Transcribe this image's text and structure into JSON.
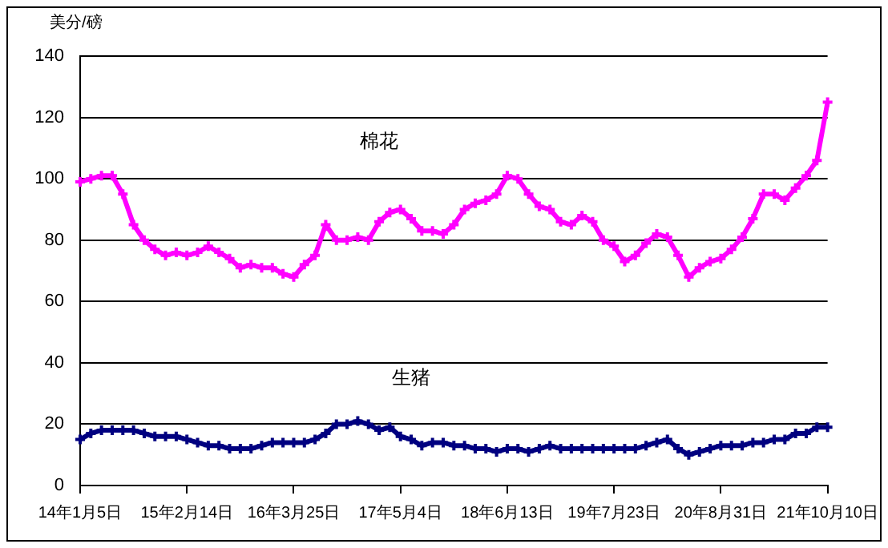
{
  "chart_data": {
    "type": "line",
    "ylabel": "美分/磅",
    "categories": [
      "14年1月5日",
      null,
      null,
      null,
      null,
      null,
      null,
      null,
      null,
      null,
      "15年2月14日",
      null,
      null,
      null,
      null,
      null,
      null,
      null,
      null,
      null,
      "16年3月25日",
      null,
      null,
      null,
      null,
      null,
      null,
      null,
      null,
      null,
      "17年5月4日",
      null,
      null,
      null,
      null,
      null,
      null,
      null,
      null,
      null,
      "18年6月13日",
      null,
      null,
      null,
      null,
      null,
      null,
      null,
      null,
      null,
      "19年7月23日",
      null,
      null,
      null,
      null,
      null,
      null,
      null,
      null,
      null,
      "20年8月31日",
      null,
      null,
      null,
      null,
      null,
      null,
      null,
      null,
      null,
      "21年10月10日"
    ],
    "series": [
      {
        "name": "棉花",
        "color": "#ff00ff",
        "values": [
          99,
          100,
          101,
          101,
          95,
          85,
          80,
          77,
          75,
          76,
          75,
          76,
          78,
          76,
          74,
          71,
          72,
          71,
          71,
          69,
          68,
          72,
          75,
          85,
          80,
          80,
          81,
          80,
          86,
          89,
          90,
          87,
          83,
          83,
          82,
          85,
          90,
          92,
          93,
          95,
          101,
          100,
          95,
          91,
          90,
          86,
          85,
          88,
          86,
          80,
          78,
          73,
          75,
          79,
          82,
          81,
          75,
          68,
          71,
          73,
          74,
          77,
          81,
          87,
          95,
          95,
          93,
          97,
          101,
          106,
          125
        ]
      },
      {
        "name": "生猪",
        "color": "#000080",
        "values": [
          15,
          17,
          18,
          18,
          18,
          18,
          17,
          16,
          16,
          16,
          15,
          14,
          13,
          13,
          12,
          12,
          12,
          13,
          14,
          14,
          14,
          14,
          15,
          17,
          20,
          20,
          21,
          20,
          18,
          19,
          16,
          15,
          13,
          14,
          14,
          13,
          13,
          12,
          12,
          11,
          12,
          12,
          11,
          12,
          13,
          12,
          12,
          12,
          12,
          12,
          12,
          12,
          12,
          13,
          14,
          15,
          12,
          10,
          11,
          12,
          13,
          13,
          13,
          14,
          14,
          15,
          15,
          17,
          17,
          19,
          19
        ]
      }
    ],
    "ylim": [
      0,
      140
    ],
    "yticks": [
      0,
      20,
      40,
      60,
      80,
      100,
      120,
      140
    ],
    "grid": "y",
    "legend": false,
    "marker": "cross",
    "line_style": "solid"
  }
}
